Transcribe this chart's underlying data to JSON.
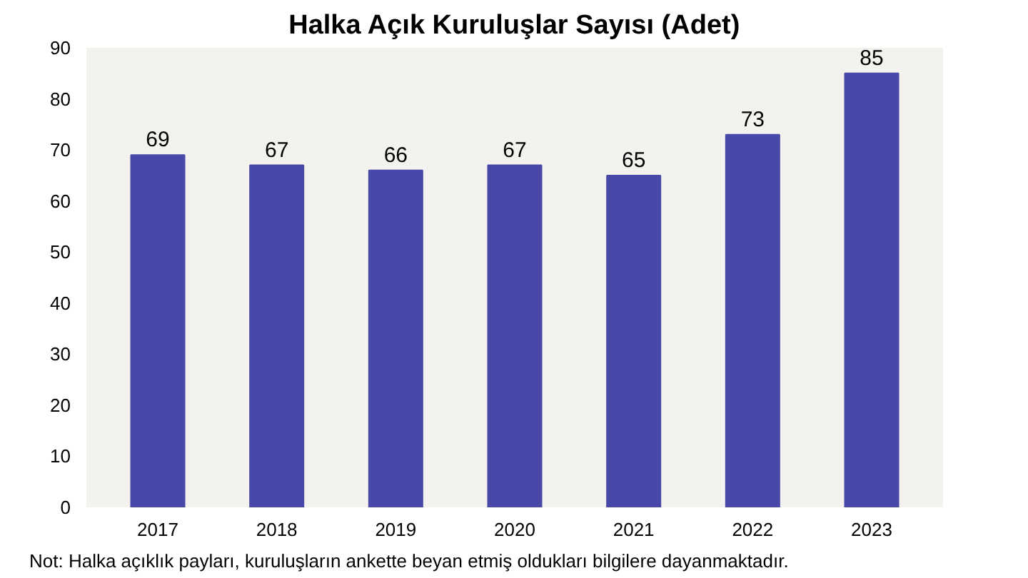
{
  "chart_data": {
    "type": "bar",
    "title": "Halka Açık Kuruluşlar Sayısı (Adet)",
    "categories": [
      "2017",
      "2018",
      "2019",
      "2020",
      "2021",
      "2022",
      "2023"
    ],
    "values": [
      69,
      67,
      66,
      67,
      65,
      73,
      85
    ],
    "color": "#4848a8",
    "ylim": [
      0,
      90
    ],
    "yticks": [
      0,
      10,
      20,
      30,
      40,
      50,
      60,
      70,
      80,
      90
    ],
    "data_labels": true,
    "grid": false,
    "annotations": [
      "Not: Halka açıklık payları, kuruluşların ankette beyan etmiş oldukları bilgilere dayanmaktadır."
    ]
  }
}
